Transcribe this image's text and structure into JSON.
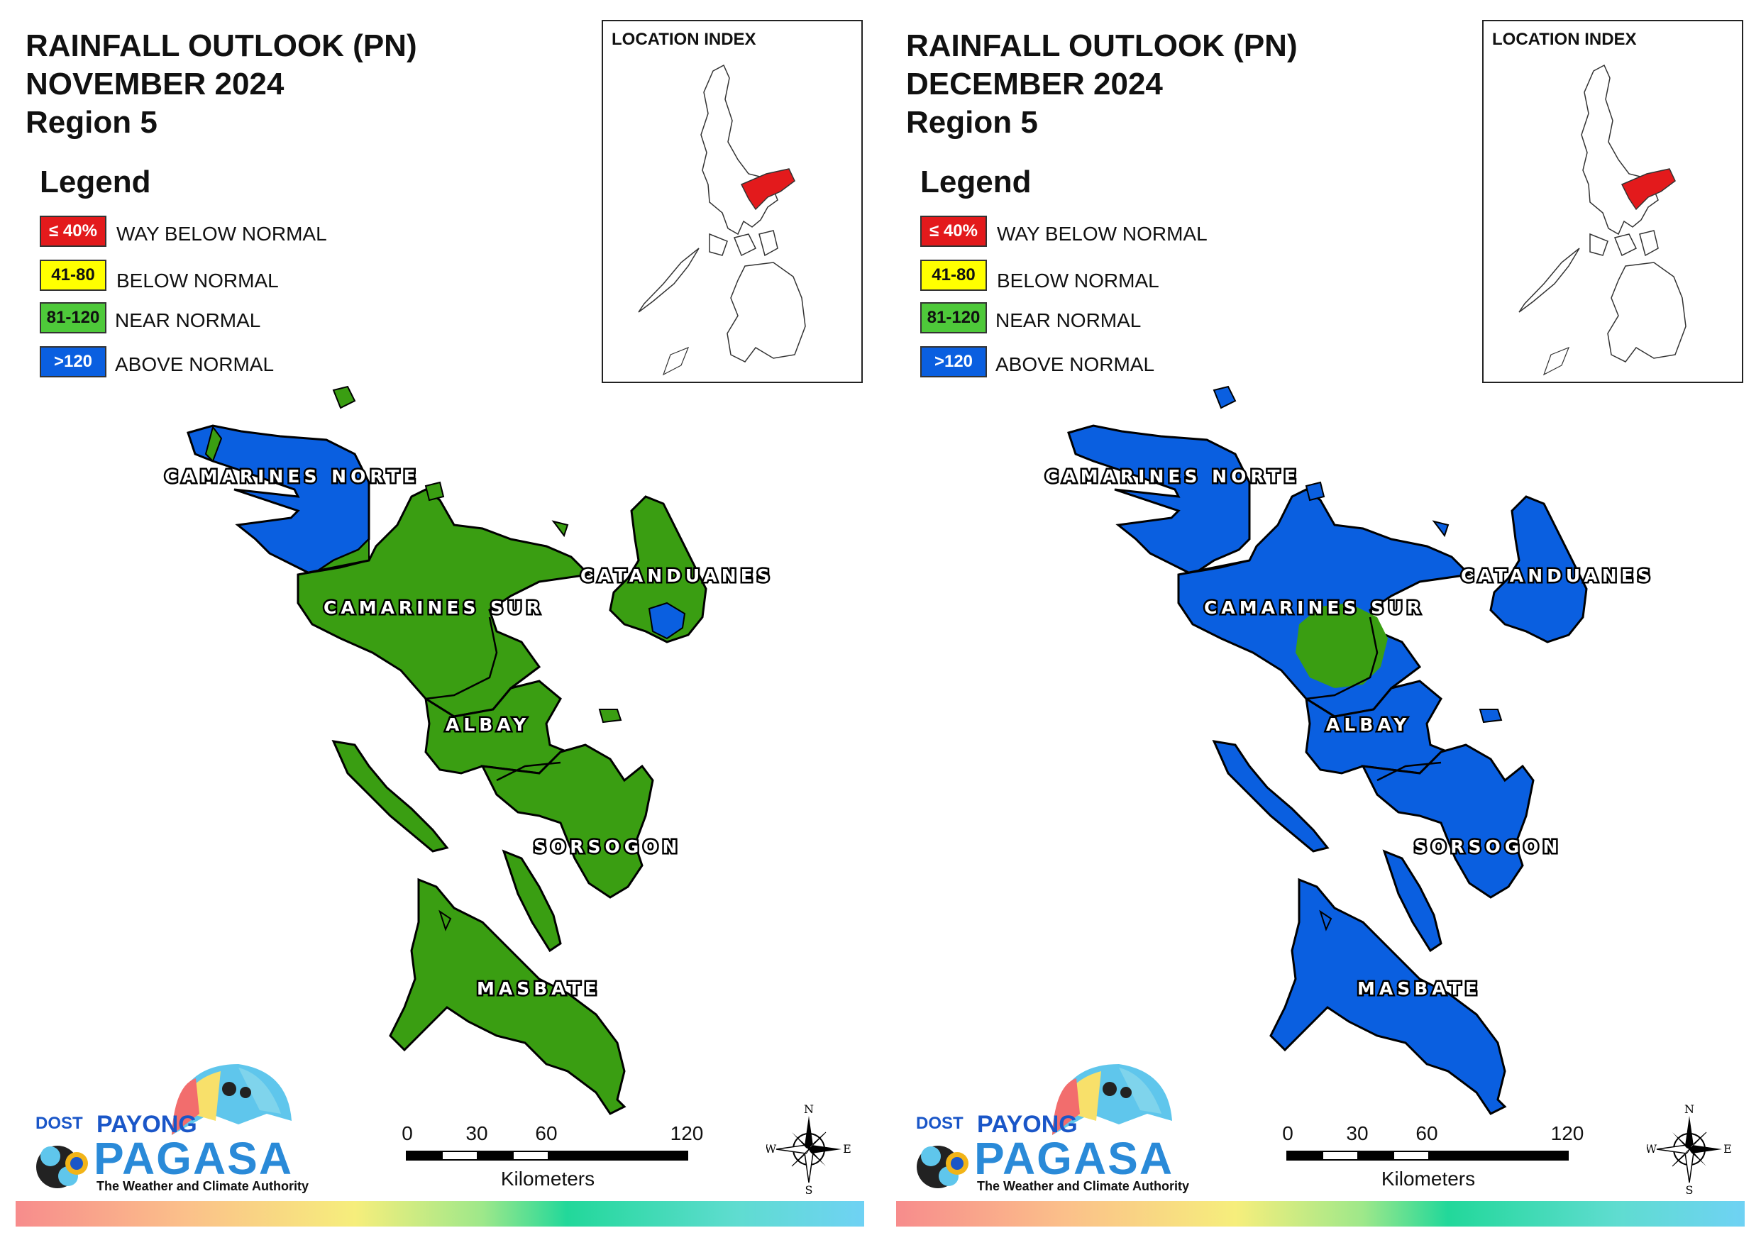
{
  "panels": [
    {
      "title_line1": "RAINFALL OUTLOOK (PN)",
      "title_line2": "NOVEMBER 2024",
      "title_line3": "Region 5",
      "legend_title": "Legend",
      "legend": [
        {
          "code": "≤ 40%",
          "label": "WAY BELOW NORMAL",
          "color": "#e31a1c",
          "text_color": "#ffffff"
        },
        {
          "code": "41-80",
          "label": "BELOW NORMAL",
          "color": "#ffff00",
          "text_color": "#111111"
        },
        {
          "code": "81-120",
          "label": "NEAR NORMAL",
          "color": "#4ec93a",
          "text_color": "#111111"
        },
        {
          "code": ">120",
          "label": "ABOVE NORMAL",
          "color": "#0a5fe0",
          "text_color": "#ffffff"
        }
      ],
      "inset_title": "LOCATION INDEX",
      "provinces": [
        "CAMARINES NORTE",
        "CAMARINES SUR",
        "CATANDUANES",
        "ALBAY",
        "SORSOGON",
        "MASBATE"
      ],
      "dominant_category": "NEAR NORMAL",
      "dominant_color": "#3a9e12",
      "secondary_category": "ABOVE NORMAL",
      "secondary_color": "#0a5fe0",
      "scale_ticks": [
        "0",
        "30",
        "60",
        "120"
      ],
      "scale_units": "Kilometers",
      "compass": {
        "n": "N",
        "s": "S",
        "e": "E",
        "w": "W"
      },
      "logo": {
        "dost": "DOST",
        "payong": "PAYONG",
        "pagasa": "PAGASA",
        "tagline": "The Weather and Climate Authority"
      }
    },
    {
      "title_line1": "RAINFALL OUTLOOK (PN)",
      "title_line2": "DECEMBER 2024",
      "title_line3": "Region 5",
      "legend_title": "Legend",
      "legend": [
        {
          "code": "≤ 40%",
          "label": "WAY BELOW NORMAL",
          "color": "#e31a1c",
          "text_color": "#ffffff"
        },
        {
          "code": "41-80",
          "label": "BELOW NORMAL",
          "color": "#ffff00",
          "text_color": "#111111"
        },
        {
          "code": "81-120",
          "label": "NEAR NORMAL",
          "color": "#4ec93a",
          "text_color": "#111111"
        },
        {
          "code": ">120",
          "label": "ABOVE NORMAL",
          "color": "#0a5fe0",
          "text_color": "#ffffff"
        }
      ],
      "inset_title": "LOCATION INDEX",
      "provinces": [
        "CAMARINES NORTE",
        "CAMARINES SUR",
        "CATANDUANES",
        "ALBAY",
        "SORSOGON",
        "MASBATE"
      ],
      "dominant_category": "ABOVE NORMAL",
      "dominant_color": "#0a5fe0",
      "secondary_category": "NEAR NORMAL",
      "secondary_color": "#3a9e12",
      "scale_ticks": [
        "0",
        "30",
        "60",
        "120"
      ],
      "scale_units": "Kilometers",
      "compass": {
        "n": "N",
        "s": "S",
        "e": "E",
        "w": "W"
      },
      "logo": {
        "dost": "DOST",
        "payong": "PAYONG",
        "pagasa": "PAGASA",
        "tagline": "The Weather and Climate Authority"
      }
    }
  ]
}
